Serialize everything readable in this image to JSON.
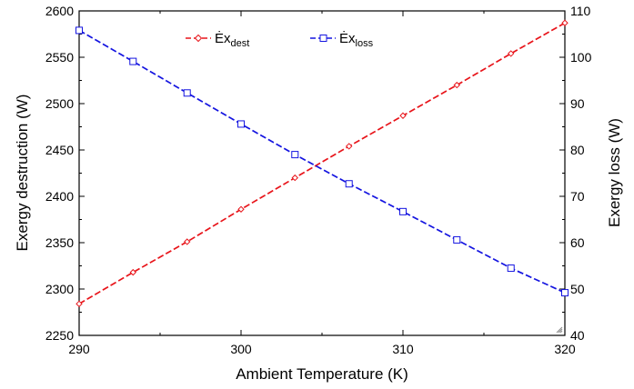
{
  "chart_data": {
    "type": "line",
    "xlabel": "Ambient Temperature (K)",
    "ylabel_left": "Exergy destruction (W)",
    "ylabel_right": "Exergy loss (W)",
    "x_ticks": [
      "290",
      "300",
      "310",
      "320"
    ],
    "y_left_ticks": [
      "2250",
      "2300",
      "2350",
      "2400",
      "2450",
      "2500",
      "2550",
      "2600"
    ],
    "y_right_ticks": [
      "40",
      "50",
      "60",
      "70",
      "80",
      "90",
      "100",
      "110"
    ],
    "xlim": [
      290,
      320
    ],
    "ylim_left": [
      2250,
      2600
    ],
    "ylim_right": [
      40,
      110
    ],
    "grid": false,
    "legend_position": "top-center",
    "series": [
      {
        "name": "Ėx",
        "subscript": "dest",
        "axis": "left",
        "color": "#e8141a",
        "marker": "diamond",
        "line_style": "dashed",
        "x": [
          290,
          293.33,
          296.67,
          300,
          303.33,
          306.67,
          310,
          313.33,
          316.67,
          320
        ],
        "y": [
          2284,
          2318,
          2351,
          2386,
          2420,
          2454,
          2487,
          2520,
          2554,
          2587
        ]
      },
      {
        "name": "Ėx",
        "subscript": "loss",
        "axis": "right",
        "color": "#1414e0",
        "marker": "square",
        "line_style": "dashed",
        "x": [
          290,
          293.33,
          296.67,
          300,
          303.33,
          306.67,
          310,
          313.33,
          316.67,
          320
        ],
        "y": [
          105.8,
          99.1,
          92.3,
          85.6,
          79.0,
          72.7,
          66.7,
          60.6,
          54.5,
          49.2
        ]
      }
    ]
  }
}
